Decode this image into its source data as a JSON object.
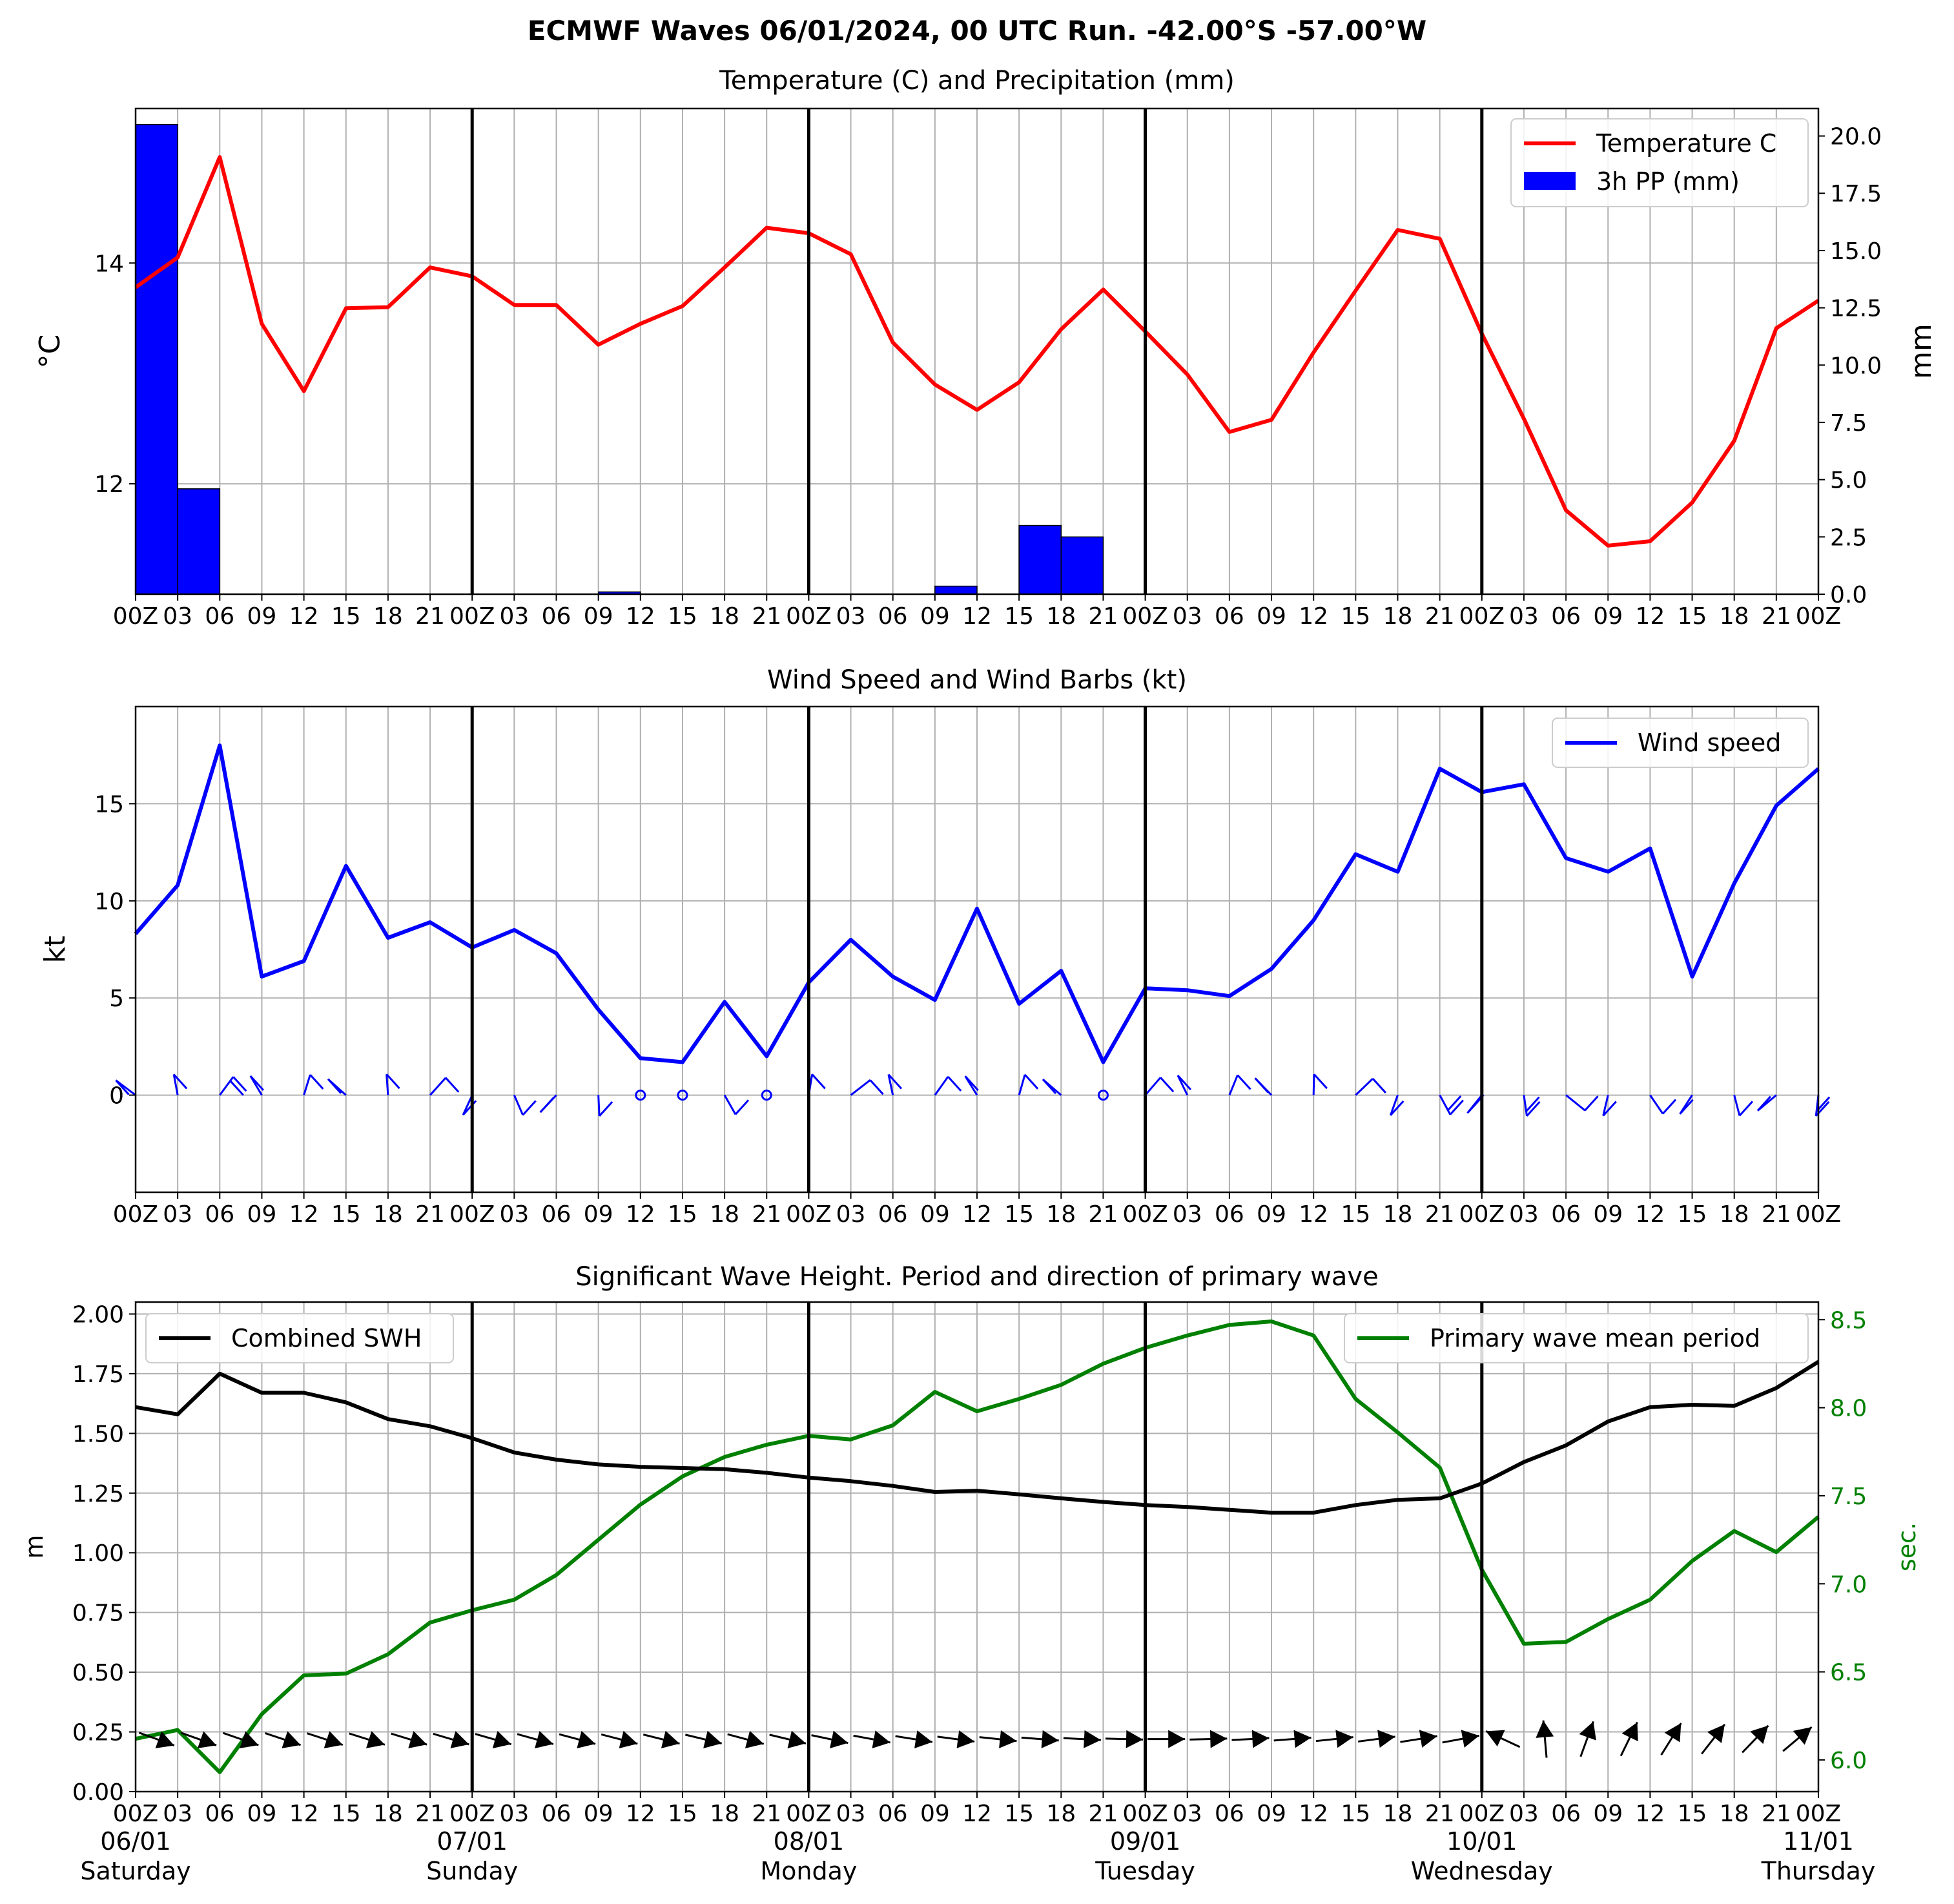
{
  "suptitle": "ECMWF Waves 06/01/2024, 00 UTC Run. -42.00°S -57.00°W",
  "x_tick_labels": [
    "00Z",
    "03",
    "06",
    "09",
    "12",
    "15",
    "18",
    "21",
    "00Z",
    "03",
    "06",
    "09",
    "12",
    "15",
    "18",
    "21",
    "00Z",
    "03",
    "06",
    "09",
    "12",
    "15",
    "18",
    "21",
    "00Z",
    "03",
    "06",
    "09",
    "12",
    "15",
    "18",
    "21",
    "00Z",
    "03",
    "06",
    "09",
    "12",
    "15",
    "18",
    "21",
    "00Z"
  ],
  "day_labels": [
    {
      "date": "06/01",
      "weekday": "Saturday"
    },
    {
      "date": "07/01",
      "weekday": "Sunday"
    },
    {
      "date": "08/01",
      "weekday": "Monday"
    },
    {
      "date": "09/01",
      "weekday": "Tuesday"
    },
    {
      "date": "10/01",
      "weekday": "Wednesday"
    },
    {
      "date": "11/01",
      "weekday": "Thursday"
    }
  ],
  "colors": {
    "temperature": "#ff0000",
    "precipitation": "#0000ff",
    "wind": "#0000ff",
    "swh": "#000000",
    "period": "#008000",
    "grid": "#b0b0b0"
  },
  "chart_data": [
    {
      "type": "line",
      "title": "Temperature (C) and Precipitation (mm)",
      "ylabel": "°C",
      "y2label": "mm",
      "x_time_steps_hours": [
        0,
        3,
        6,
        9,
        12,
        15,
        18,
        21,
        24,
        27,
        30,
        33,
        36,
        39,
        42,
        45,
        48,
        51,
        54,
        57,
        60,
        63,
        66,
        69,
        72,
        75,
        78,
        81,
        84,
        87,
        90,
        93,
        96,
        99,
        102,
        105,
        108,
        111,
        114,
        117,
        120
      ],
      "ylim": [
        11.0,
        15.4
      ],
      "yticks": [
        12,
        14
      ],
      "y2lim": [
        0,
        21.2
      ],
      "y2ticks": [
        "0.0",
        "2.5",
        "5.0",
        "7.5",
        "10.0",
        "12.5",
        "15.0",
        "17.5",
        "20.0"
      ],
      "legend_placement": "upper-right",
      "series": [
        {
          "name": "Temperature C",
          "kind": "line",
          "axis": "left",
          "values": [
            13.78,
            14.05,
            14.96,
            13.45,
            12.84,
            13.59,
            13.6,
            13.96,
            13.88,
            13.62,
            13.62,
            13.26,
            13.45,
            13.61,
            13.96,
            14.32,
            14.27,
            14.08,
            13.28,
            12.9,
            12.67,
            12.92,
            13.4,
            13.76,
            13.38,
            12.99,
            12.47,
            12.58,
            13.19,
            13.75,
            14.3,
            14.22,
            13.36,
            12.59,
            11.76,
            11.44,
            11.48,
            11.83,
            12.39,
            13.41,
            13.66
          ]
        },
        {
          "name": "3h PP (mm)",
          "kind": "bar",
          "axis": "right",
          "values": [
            20.5,
            4.6,
            0,
            0,
            0,
            0,
            0,
            0,
            0,
            0,
            0,
            0.1,
            0,
            0,
            0,
            0,
            0,
            0,
            0,
            0.35,
            0,
            3.0,
            2.5,
            0,
            0,
            0,
            0,
            0,
            0,
            0,
            0,
            0,
            0,
            0,
            0,
            0,
            0,
            0,
            0,
            0
          ]
        }
      ]
    },
    {
      "type": "line",
      "title": "Wind Speed and Wind Barbs (kt)",
      "ylabel": "kt",
      "ylim": [
        -5,
        20
      ],
      "yticks": [
        0,
        5,
        10,
        15
      ],
      "legend_placement": "upper-right",
      "series": [
        {
          "name": "Wind speed",
          "values": [
            8.3,
            10.8,
            18.0,
            6.1,
            6.9,
            11.8,
            8.1,
            8.9,
            7.6,
            8.5,
            7.3,
            4.4,
            1.9,
            1.7,
            4.8,
            2.0,
            5.8,
            8.0,
            6.1,
            4.9,
            9.6,
            4.7,
            6.4,
            1.7,
            5.5,
            5.4,
            5.1,
            6.5,
            9.0,
            12.4,
            11.5,
            16.8,
            15.6,
            16.0,
            12.2,
            11.5,
            12.7,
            6.1,
            10.9,
            14.9,
            16.8
          ]
        }
      ]
    },
    {
      "type": "line",
      "title": "Significant Wave Height. Period and direction of primary wave",
      "ylabel": "m",
      "y2label": "sec.",
      "ylim": [
        0.0,
        2.05
      ],
      "yticks": [
        "0.00",
        "0.25",
        "0.50",
        "0.75",
        "1.00",
        "1.25",
        "1.50",
        "1.75",
        "2.00"
      ],
      "y2lim": [
        5.82,
        8.6
      ],
      "y2ticks": [
        "6.0",
        "6.5",
        "7.0",
        "7.5",
        "8.0",
        "8.5"
      ],
      "series": [
        {
          "name": "Combined SWH",
          "axis": "left",
          "legend_placement": "upper-left",
          "values": [
            1.61,
            1.58,
            1.75,
            1.67,
            1.67,
            1.63,
            1.56,
            1.53,
            1.48,
            1.42,
            1.39,
            1.37,
            1.36,
            1.355,
            1.35,
            1.335,
            1.315,
            1.3,
            1.28,
            1.255,
            1.26,
            1.245,
            1.228,
            1.213,
            1.2,
            1.192,
            1.18,
            1.168,
            1.168,
            1.2,
            1.222,
            1.228,
            1.29,
            1.38,
            1.45,
            1.55,
            1.61,
            1.62,
            1.615,
            1.69,
            1.8
          ]
        },
        {
          "name": "Primary wave mean period",
          "axis": "right",
          "legend_placement": "upper-right",
          "values": [
            6.12,
            6.17,
            5.93,
            6.26,
            6.48,
            6.49,
            6.6,
            6.78,
            6.85,
            6.91,
            7.05,
            7.25,
            7.45,
            7.61,
            7.72,
            7.79,
            7.84,
            7.82,
            7.9,
            8.09,
            7.98,
            8.05,
            8.13,
            8.25,
            8.34,
            8.41,
            8.47,
            8.49,
            8.41,
            8.05,
            7.86,
            7.66,
            7.08,
            6.66,
            6.67,
            6.8,
            6.91,
            7.13,
            7.3,
            7.18,
            7.38
          ]
        }
      ]
    }
  ]
}
